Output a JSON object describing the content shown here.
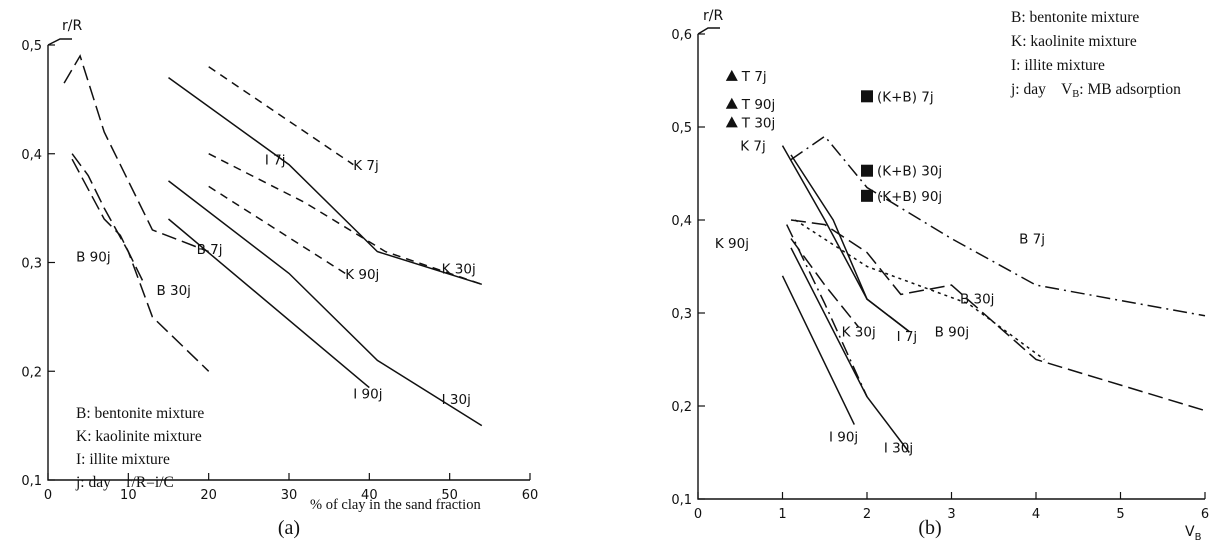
{
  "panels": [
    {
      "caption": "(a)",
      "y_axis_title": "r/R",
      "x_axis_title": "% of clay in the sand fraction",
      "x_ticks": [
        "0",
        "10",
        "20",
        "30",
        "40",
        "50",
        "60"
      ],
      "y_ticks": [
        "0,1",
        "0,2",
        "0,3",
        "0,4",
        "0,5"
      ],
      "legend": [
        "B: bentonite mixture",
        "K: kaolinite mixture",
        "I: illite mixture",
        "j: day    r/R=i/C"
      ]
    },
    {
      "caption": "(b)",
      "y_axis_title": "r/R",
      "x_axis_title": "V",
      "x_axis_title_sub": "B",
      "x_ticks": [
        "0",
        "1",
        "2",
        "3",
        "4",
        "5",
        "6"
      ],
      "y_ticks": [
        "0,1",
        "0,2",
        "0,3",
        "0,4",
        "0,5",
        "0,6"
      ],
      "legend": [
        "B: bentonite mixture",
        "K: kaolinite mixture",
        "I: illite mixture",
        "j: day    V",
        "B",
        ": MB adsorption"
      ]
    }
  ],
  "chart_data": [
    {
      "type": "line",
      "xlabel": "% of clay in the sand fraction",
      "ylabel": "r/R",
      "xlim": [
        0,
        60
      ],
      "ylim": [
        0.1,
        0.5
      ],
      "grid": false,
      "legend_position": "bottom-left",
      "series": [
        {
          "name": "B 7j",
          "dash": "long",
          "label_at": [
            18.5,
            0.308
          ],
          "points": [
            [
              2,
              0.465
            ],
            [
              4,
              0.49
            ],
            [
              7,
              0.42
            ],
            [
              13,
              0.33
            ],
            [
              20,
              0.31
            ]
          ]
        },
        {
          "name": "B 30j",
          "dash": "long",
          "label_at": [
            13.5,
            0.27
          ],
          "points": [
            [
              3,
              0.395
            ],
            [
              7,
              0.34
            ],
            [
              9,
              0.325
            ],
            [
              12,
              0.28
            ]
          ]
        },
        {
          "name": "B 90j",
          "dash": "long",
          "label_at": [
            3.5,
            0.301
          ],
          "points": [
            [
              3,
              0.4
            ],
            [
              5,
              0.38
            ],
            [
              7,
              0.35
            ],
            [
              10,
              0.31
            ],
            [
              13,
              0.25
            ],
            [
              20,
              0.2
            ]
          ]
        },
        {
          "name": "K 7j",
          "dash": "short",
          "label_at": [
            38,
            0.385
          ],
          "points": [
            [
              20,
              0.48
            ],
            [
              38,
              0.39
            ]
          ]
        },
        {
          "name": "K 30j",
          "dash": "short",
          "label_at": [
            49,
            0.29
          ],
          "points": [
            [
              20,
              0.4
            ],
            [
              32,
              0.355
            ],
            [
              42,
              0.31
            ],
            [
              54,
              0.28
            ]
          ]
        },
        {
          "name": "K 90j",
          "dash": "short",
          "label_at": [
            37,
            0.285
          ],
          "points": [
            [
              20,
              0.37
            ],
            [
              37,
              0.29
            ]
          ]
        },
        {
          "name": "I 7j",
          "dash": "solid",
          "label_at": [
            27,
            0.39
          ],
          "points": [
            [
              15,
              0.47
            ],
            [
              30,
              0.39
            ],
            [
              41,
              0.31
            ],
            [
              54,
              0.28
            ]
          ]
        },
        {
          "name": "I 30j",
          "dash": "solid",
          "label_at": [
            49,
            0.17
          ],
          "points": [
            [
              15,
              0.375
            ],
            [
              30,
              0.29
            ],
            [
              41,
              0.21
            ],
            [
              54,
              0.15
            ]
          ]
        },
        {
          "name": "I 90j",
          "dash": "solid",
          "label_at": [
            38,
            0.175
          ],
          "points": [
            [
              15,
              0.34
            ],
            [
              40,
              0.185
            ]
          ]
        }
      ]
    },
    {
      "type": "line",
      "xlabel": "V_B",
      "ylabel": "r/R",
      "xlim": [
        0,
        6
      ],
      "ylim": [
        0.1,
        0.6
      ],
      "grid": false,
      "legend_position": "top-right",
      "series": [
        {
          "name": "B 7j",
          "dash": "dashdot",
          "label_at": [
            3.8,
            0.375
          ],
          "points": [
            [
              1.1,
              0.465
            ],
            [
              1.5,
              0.49
            ],
            [
              2.0,
              0.435
            ],
            [
              3.0,
              0.38
            ],
            [
              4.0,
              0.33
            ],
            [
              6.0,
              0.297
            ]
          ]
        },
        {
          "name": "B 30j",
          "dash": "long",
          "label_at": [
            3.1,
            0.31
          ],
          "points": [
            [
              1.1,
              0.4
            ],
            [
              1.5,
              0.395
            ],
            [
              2.0,
              0.365
            ],
            [
              2.4,
              0.32
            ],
            [
              3.0,
              0.33
            ],
            [
              4.0,
              0.25
            ],
            [
              6.0,
              0.195
            ]
          ]
        },
        {
          "name": "B 90j",
          "dash": "dot",
          "label_at": [
            2.8,
            0.275
          ],
          "points": [
            [
              1.15,
              0.4
            ],
            [
              2.0,
              0.35
            ],
            [
              3.2,
              0.31
            ],
            [
              4.1,
              0.25
            ]
          ]
        },
        {
          "name": "K 7j",
          "dash": "solid",
          "label_at": [
            0.5,
            0.475
          ],
          "points": [
            [
              1.1,
              0.47
            ],
            [
              1.6,
              0.4
            ],
            [
              2.0,
              0.315
            ],
            [
              2.5,
              0.28
            ]
          ]
        },
        {
          "name": "K 30j",
          "dash": "long",
          "label_at": [
            1.7,
            0.275
          ],
          "points": [
            [
              1.1,
              0.38
            ],
            [
              1.5,
              0.33
            ],
            [
              1.9,
              0.285
            ]
          ]
        },
        {
          "name": "K 90j",
          "dash": "dashdot",
          "label_at": [
            0.2,
            0.37
          ],
          "points": [
            [
              1.05,
              0.395
            ],
            [
              1.5,
              0.31
            ],
            [
              2.0,
              0.21
            ]
          ]
        },
        {
          "name": "I 7j",
          "dash": "solid",
          "label_at": [
            2.35,
            0.27
          ],
          "points": [
            [
              1.0,
              0.48
            ],
            [
              1.5,
              0.4
            ],
            [
              2.0,
              0.315
            ],
            [
              2.5,
              0.28
            ]
          ]
        },
        {
          "name": "I 30j",
          "dash": "solid",
          "label_at": [
            2.2,
            0.15
          ],
          "points": [
            [
              1.1,
              0.37
            ],
            [
              2.0,
              0.21
            ],
            [
              2.5,
              0.15
            ]
          ]
        },
        {
          "name": "I 90j",
          "dash": "solid",
          "label_at": [
            1.55,
            0.162
          ],
          "points": [
            [
              1.0,
              0.34
            ],
            [
              1.85,
              0.18
            ]
          ]
        }
      ],
      "point_series": [
        {
          "name": "T 7j",
          "marker": "triangle",
          "x": 0.4,
          "y": 0.555
        },
        {
          "name": "T 90j",
          "marker": "triangle",
          "x": 0.4,
          "y": 0.525
        },
        {
          "name": "T 30j",
          "marker": "triangle",
          "x": 0.4,
          "y": 0.505
        },
        {
          "name": "(K+B) 7j",
          "marker": "square",
          "x": 2.0,
          "y": 0.533
        },
        {
          "name": "(K+B) 30j",
          "marker": "square",
          "x": 2.0,
          "y": 0.453
        },
        {
          "name": "(K+B) 90j",
          "marker": "square",
          "x": 2.0,
          "y": 0.426
        }
      ]
    }
  ]
}
